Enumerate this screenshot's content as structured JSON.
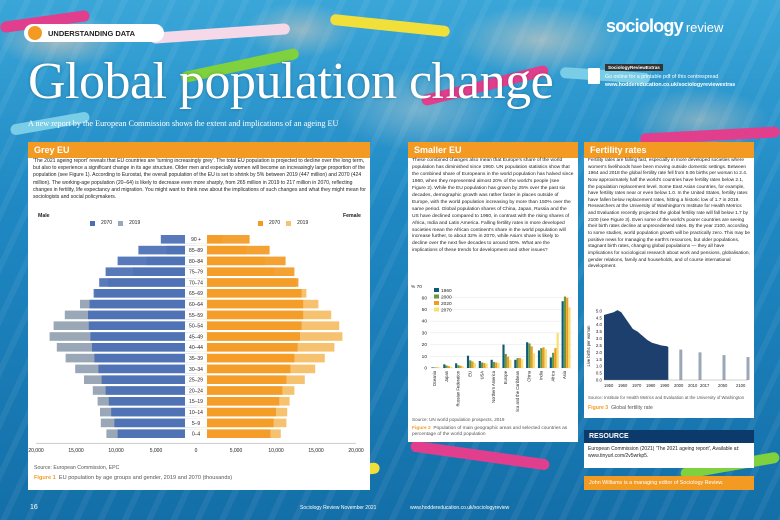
{
  "header": {
    "tag": "UNDERSTANDING DATA",
    "title": "Global population change",
    "subtitle": "A new report by the European Commission shows the extent and implications of an ageing EU",
    "logo_main": "sociology",
    "logo_sub": "review",
    "extras_tag": "SociologyReviewExtras",
    "extras_line1": "Go online for a printable pdf of this centrespread",
    "extras_line2": "www.hoddereducation.co.uk/sociologyreviewextras"
  },
  "grey_eu": {
    "heading": "Grey EU",
    "body": "'The 2021 ageing report' reveals that EU countries are 'turning increasingly grey'. The total EU population is projected to decline over the long term, but also to experience a significant change in its age structure. Older men and especially women will become an increasingly large proportion of the population (see Figure 1). According to Eurostat, the overall population of the EU is set to shrink by 5% between 2019 (447 million) and 2070 (424 million). The working-age population (20–64) is likely to decrease even more sharply, from 265 million in 2019 to 217 million in 2070, reflecting changes in fertility, life expectancy and migration. You might want to think now about the implications of such changes and what they might mean for sociologists and social policymakers.",
    "male_label": "Male",
    "female_label": "Female",
    "legend_2070": "2070",
    "legend_2019": "2019",
    "source": "Source: European Commission, EPC",
    "fig_label": "Figure 1",
    "fig_caption": "EU population by age groups and gender, 2019 and 2070 (thousands)"
  },
  "smaller_eu": {
    "heading": "Smaller EU",
    "body": "These combined changes also mean that Europe's share of the world population has diminished since 1960. UN population statistics show that the combined share of Europeans in the world population has halved since 1960, when they represented almost 20% of the world's people (see Figure 2). While the EU population has grown by 25% over the past six decades, demographic growth was rather faster in places outside of Europe, with the world population increasing by more than 150% over the same period. Global population shares of China, Japan, Russia and the US have declined compared to 1960, in contrast with the rising shares of Africa, India and Latin America. Falling fertility rates in more developed societies mean the African continent's share in the world population will increase further, to about 32% in 2070, while Asia's share is likely to decline over the next five decades to around 50%. What are the implications of these trends for development and other issues?",
    "source": "Source: UN world population prospects, 2019",
    "fig_label": "Figure 2",
    "fig_caption": "Population of main geographic areas and selected countries as percentage of the world population"
  },
  "fertility": {
    "heading": "Fertility rates",
    "body": "Fertility rates are falling fast, especially in more developed societies where women's livelihoods have been moving outside domestic settings. Between 1964 and 2018 the global fertility rate fell from 5.06 births per woman to 2.4. Now approximately half the world's countries have fertility rates below 2.1, the population replacement level. Some East Asian countries, for example, have fertility rates near or even below 1.0. In the United States, fertility rates have fallen below replacement rates, hitting a historic low of 1.7 in 2019. Researchers at the University of Washington's Institute for Health Metrics and Evaluation recently projected the global fertility rate will fall below 1.7 by 2100 (see Figure 3). Even some of the world's poorer countries are seeing their birth rates decline at unprecedented rates. By the year 2100, according to some studies, world population growth will be practically zero. This may be positive news for managing the earth's resources, but older populations, stagnant birth rates, changing global populations — they all have implications for sociological research about work and pensions, globalisation, gender relations, family and households, and of course international development.",
    "source": "Source: Institute for Health Metrics and Evaluation at the University of Washington",
    "fig_label": "Figure 3",
    "fig_caption": "Global fertility rate"
  },
  "resource": {
    "heading": "RESOURCE",
    "body": "European Commission (2021) 'The 2021 ageing report', Available at: www.tinyurl.com/2v5wrkp5."
  },
  "author": "John Williams is a managing editor of Sociology Review.",
  "footer": {
    "page": "16",
    "issue": "Sociology Review  November 2021",
    "url": "www.hoddereducation.co.uk/sociologyreview"
  },
  "chart_data": [
    {
      "type": "bar",
      "title": "EU population by age groups and gender, 2019 and 2070 (thousands)",
      "orientation": "horizontal-pyramid",
      "categories": [
        "0–4",
        "5–9",
        "10–14",
        "15–19",
        "20–24",
        "25–29",
        "30–34",
        "35–39",
        "40–44",
        "45–49",
        "50–54",
        "55–59",
        "60–64",
        "65–69",
        "70–74",
        "75–79",
        "80–84",
        "85–89",
        "90 +"
      ],
      "series": [
        {
          "name": "2070",
          "side": "Male",
          "values": [
            9800,
            10200,
            10600,
            10900,
            11300,
            11800,
            12200,
            12700,
            13000,
            13200,
            13400,
            13500,
            13300,
            12800,
            12100,
            11300,
            9800,
            7200,
            4400
          ],
          "color": "#4a6fb5"
        },
        {
          "name": "2019",
          "side": "Male",
          "values": [
            11200,
            11900,
            12000,
            12300,
            12900,
            14000,
            15100,
            16300,
            17400,
            18300,
            17800,
            16400,
            14500,
            12600,
            11000,
            7900,
            6200,
            3700,
            1400
          ],
          "color": "#9aa7b6"
        },
        {
          "name": "2070",
          "side": "Female",
          "values": [
            9300,
            9700,
            10000,
            10400,
            10800,
            11300,
            11800,
            12300,
            12700,
            13000,
            13200,
            13400,
            13400,
            13200,
            12800,
            12300,
            11200,
            9200,
            6700
          ],
          "color": "#f39a23"
        },
        {
          "name": "2019",
          "side": "Female",
          "values": [
            10600,
            11300,
            11400,
            11700,
            12300,
            13600,
            14900,
            16100,
            17300,
            18300,
            17900,
            16900,
            15300,
            13800,
            12500,
            9800,
            8600,
            6300,
            3300
          ],
          "color": "#f6c26f"
        }
      ],
      "xticks": [
        "20,000",
        "15,000",
        "10,000",
        "5,000",
        "0",
        "5,000",
        "10,000",
        "15,000",
        "20,000"
      ],
      "xlim": [
        -20000,
        20000
      ],
      "legend": "top"
    },
    {
      "type": "bar",
      "title": "Population of main geographic areas and selected countries as percentage of the world population",
      "ylabel": "% 70",
      "ylim": [
        0,
        70
      ],
      "yticks": [
        0,
        10,
        20,
        30,
        40,
        50,
        60
      ],
      "categories": [
        "Oceania",
        "Japan",
        "Russian Federation",
        "EU",
        "USA",
        "Northern America",
        "Europe",
        "Latin America and the Caribbean",
        "China",
        "India",
        "Africa",
        "Asia"
      ],
      "series": [
        {
          "name": "1960",
          "values": [
            0.5,
            3.1,
            4.0,
            10.5,
            6.0,
            7.0,
            20.0,
            7.0,
            22.0,
            15.0,
            9.0,
            57.0
          ],
          "color": "#0e5a7a"
        },
        {
          "name": "2000",
          "values": [
            0.5,
            2.1,
            2.4,
            6.5,
            4.7,
            5.2,
            12.0,
            8.5,
            21.0,
            17.0,
            13.0,
            61.0
          ],
          "color": "#6a9a3a"
        },
        {
          "name": "2020",
          "values": [
            0.5,
            1.6,
            1.9,
            5.6,
            4.2,
            4.7,
            9.6,
            8.5,
            18.5,
            17.7,
            17.0,
            60.0
          ],
          "color": "#f39a23"
        },
        {
          "name": "2070",
          "values": [
            0.6,
            1.0,
            1.3,
            4.2,
            3.8,
            4.4,
            7.0,
            7.5,
            12.5,
            16.0,
            30.0,
            52.0
          ],
          "color": "#f6e06f"
        }
      ],
      "legend": "top-left"
    },
    {
      "type": "area",
      "title": "Global fertility rate",
      "ylabel": "Live births per woman",
      "ylim": [
        0,
        5.5
      ],
      "yticks": [
        "0.0",
        "0.5",
        "1.0",
        "1.5",
        "2.0",
        "2.5",
        "3.0",
        "3.5",
        "4.0",
        "4.5",
        "5.0"
      ],
      "xticks": [
        "1950",
        "1960",
        "1970",
        "1980",
        "1990",
        "2000",
        "2010",
        "2017",
        "2050",
        "2100"
      ],
      "x": [
        1950,
        1955,
        1960,
        1964,
        1968,
        1972,
        1976,
        1980,
        1985,
        1990,
        1995,
        2000,
        2005,
        2010,
        2015,
        2017,
        2030,
        2050,
        2075,
        2100
      ],
      "values": [
        4.7,
        4.8,
        4.9,
        5.06,
        4.9,
        4.5,
        4.1,
        3.7,
        3.5,
        3.2,
        2.9,
        2.7,
        2.6,
        2.5,
        2.45,
        2.4,
        2.2,
        2.0,
        1.8,
        1.66
      ],
      "projected_from": 2017,
      "legend": "none"
    }
  ]
}
